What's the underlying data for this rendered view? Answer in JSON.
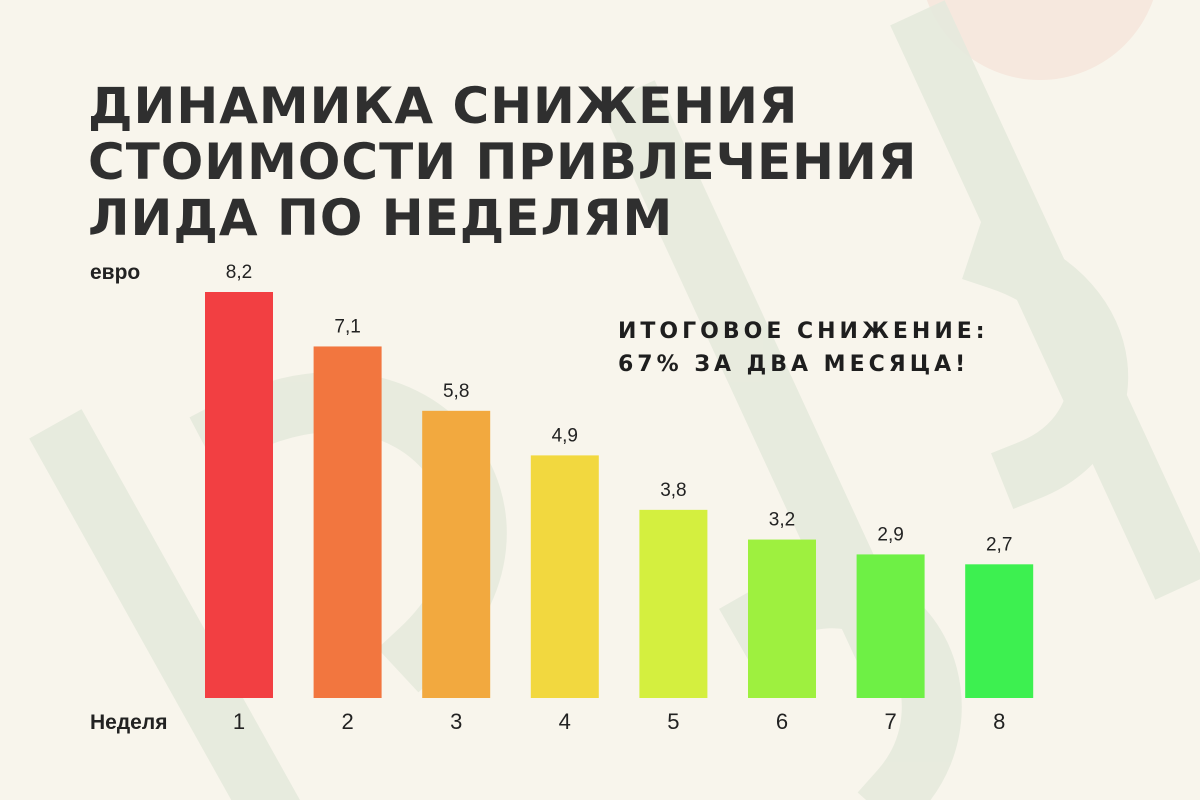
{
  "title": {
    "lines": [
      "Динамика снижения",
      "стоимости привлечения",
      "лида по неделям"
    ]
  },
  "callout": {
    "lines": [
      "Итоговое снижение:",
      "67% за два месяца!"
    ]
  },
  "chart_data": {
    "type": "bar",
    "ylabel": "евро",
    "xlabel": "Неделя",
    "categories": [
      "1",
      "2",
      "3",
      "4",
      "5",
      "6",
      "7",
      "8"
    ],
    "values": [
      8.2,
      7.1,
      5.8,
      4.9,
      3.8,
      3.2,
      2.9,
      2.7
    ],
    "value_labels": [
      "8,2",
      "7,1",
      "5,8",
      "4,9",
      "3,8",
      "3,2",
      "2,9",
      "2,7"
    ],
    "colors": [
      "#f23f42",
      "#f2763f",
      "#f2a93f",
      "#f2d83f",
      "#d4ef3f",
      "#9ef03f",
      "#6ef045",
      "#3df050"
    ],
    "grid": false,
    "legend": "none"
  },
  "background": {
    "color": "#f8f5ec",
    "watermark_color": "#e6eadd",
    "circle_color": "#f6e8de"
  }
}
